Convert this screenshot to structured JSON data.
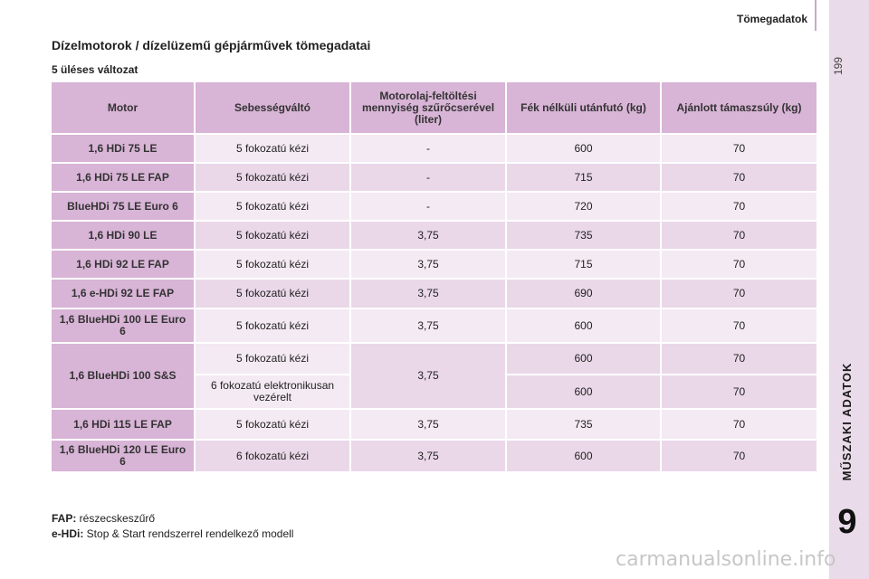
{
  "header": {
    "section": "Tömegadatok"
  },
  "page_number": "199",
  "side": {
    "section_label": "MŰSZAKI ADATOK",
    "chapter": "9"
  },
  "title": "Dízelmotorok / dízelüzemű gépjárművek tömegadatai",
  "subtitle": "5 üléses változat",
  "table": {
    "headers": [
      "Motor",
      "Sebességváltó",
      "Motorolaj-feltöltési mennyiség szűrőcserével (liter)",
      "Fék nélküli utánfutó (kg)",
      "Ajánlott támaszsúly (kg)"
    ],
    "rows": [
      {
        "motor": "1,6 HDi 75 LE",
        "gearbox": "5 fokozatú kézi",
        "oil": "-",
        "trailer": "600",
        "load": "70"
      },
      {
        "motor": "1,6 HDi 75 LE FAP",
        "gearbox": "5 fokozatú kézi",
        "oil": "-",
        "trailer": "715",
        "load": "70"
      },
      {
        "motor": "BlueHDi 75 LE Euro 6",
        "gearbox": "5 fokozatú kézi",
        "oil": "-",
        "trailer": "720",
        "load": "70"
      },
      {
        "motor": "1,6 HDi 90 LE",
        "gearbox": "5 fokozatú kézi",
        "oil": "3,75",
        "trailer": "735",
        "load": "70"
      },
      {
        "motor": "1,6 HDi 92 LE FAP",
        "gearbox": "5 fokozatú kézi",
        "oil": "3,75",
        "trailer": "715",
        "load": "70"
      },
      {
        "motor": "1,6 e-HDi 92 LE FAP",
        "gearbox": "5 fokozatú kézi",
        "oil": "3,75",
        "trailer": "690",
        "load": "70"
      },
      {
        "motor": "1,6 BlueHDi 100 LE Euro 6",
        "gearbox": "5 fokozatú kézi",
        "oil": "3,75",
        "trailer": "600",
        "load": "70"
      }
    ],
    "split_row": {
      "motor": "1,6 BlueHDi 100 S&S",
      "oil": "3,75",
      "sub": [
        {
          "gearbox": "5 fokozatú kézi",
          "trailer": "600",
          "load": "70"
        },
        {
          "gearbox": "6 fokozatú elektronikusan vezérelt",
          "trailer": "600",
          "load": "70"
        }
      ]
    },
    "rows_after": [
      {
        "motor": "1,6 HDi 115 LE FAP",
        "gearbox": "5 fokozatú kézi",
        "oil": "3,75",
        "trailer": "735",
        "load": "70"
      },
      {
        "motor": "1,6 BlueHDi 120 LE Euro 6",
        "gearbox": "6 fokozatú kézi",
        "oil": "3,75",
        "trailer": "600",
        "load": "70"
      }
    ]
  },
  "notes": [
    {
      "term": "FAP:",
      "text": " részecskeszűrő"
    },
    {
      "term": "e-HDi:",
      "text": " Stop & Start rendszerrel rendelkező modell"
    }
  ],
  "watermark": "carmanualsonline.info"
}
